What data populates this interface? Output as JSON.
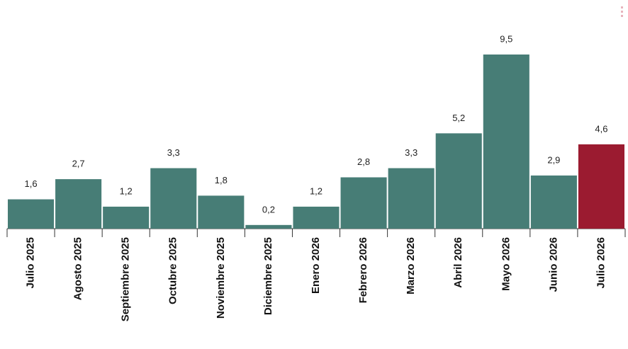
{
  "chart_data": {
    "type": "bar",
    "categories": [
      "Julio 2025",
      "Agosto 2025",
      "Septiembre 2025",
      "Octubre 2025",
      "Noviembre 2025",
      "Diciembre 2025",
      "Enero 2026",
      "Febrero 2026",
      "Marzo 2026",
      "Abril 2026",
      "Mayo 2026",
      "Junio 2026",
      "Julio 2026"
    ],
    "values": [
      1.6,
      2.7,
      1.2,
      3.3,
      1.8,
      0.2,
      1.2,
      2.8,
      3.3,
      5.2,
      9.5,
      2.9,
      4.6
    ],
    "value_labels": [
      "1,6",
      "2,7",
      "1,2",
      "3,3",
      "1,8",
      "0,2",
      "1,2",
      "2,8",
      "3,3",
      "5,2",
      "9,5",
      "2,9",
      "4,6"
    ],
    "colors": [
      "#477d76",
      "#477d76",
      "#477d76",
      "#477d76",
      "#477d76",
      "#477d76",
      "#477d76",
      "#477d76",
      "#477d76",
      "#477d76",
      "#477d76",
      "#477d76",
      "#9b1b30"
    ]
  }
}
